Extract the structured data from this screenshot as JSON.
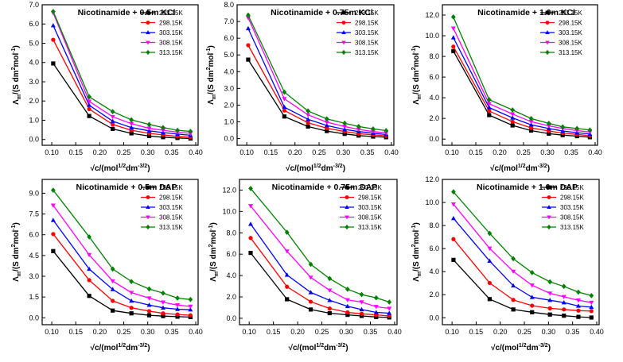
{
  "figure": {
    "xlabel": "√c/(mol",
    "xlabel_sup": "1/2",
    "xlabel_mid": "dm",
    "xlabel_sup2": "-3/2",
    "xlabel_end": ")",
    "ylabel": "Λ",
    "ylabel_sub": "m",
    "ylabel_mid": "/(S dm",
    "ylabel_sup": "2",
    "ylabel_mid2": "mol",
    "ylabel_sup2": "-1",
    "ylabel_end": ")"
  },
  "colors": {
    "293.15K": "#000000",
    "298.15K": "#ff0000",
    "303.15K": "#0000ff",
    "308.15K": "#ff00ff",
    "313.15K": "#008000"
  },
  "chart_data": [
    {
      "type": "line",
      "title": "Nicotinamide + 0.5m KCl",
      "x": [
        0.103,
        0.178,
        0.227,
        0.266,
        0.303,
        0.332,
        0.362,
        0.389
      ],
      "ylim": [
        -0.3,
        7.0
      ],
      "yticks": [
        "0.0",
        "1.0",
        "2.0",
        "3.0",
        "4.0",
        "5.0",
        "6.0",
        "7.0"
      ],
      "ytick_values": [
        0,
        1,
        2,
        3,
        4,
        5,
        6,
        7
      ],
      "series": [
        {
          "name": "293.15K",
          "marker": "square",
          "values": [
            3.95,
            1.22,
            0.55,
            0.32,
            0.18,
            0.12,
            0.08,
            0.05
          ]
        },
        {
          "name": "298.15K",
          "marker": "circle",
          "values": [
            5.18,
            1.58,
            0.78,
            0.48,
            0.32,
            0.24,
            0.16,
            0.12
          ]
        },
        {
          "name": "303.15K",
          "marker": "triangle-up",
          "values": [
            5.92,
            1.78,
            0.95,
            0.62,
            0.45,
            0.36,
            0.28,
            0.22
          ]
        },
        {
          "name": "308.15K",
          "marker": "triangle-down",
          "values": [
            6.58,
            1.98,
            1.18,
            0.82,
            0.58,
            0.48,
            0.38,
            0.32
          ]
        },
        {
          "name": "313.15K",
          "marker": "diamond",
          "values": [
            6.65,
            2.22,
            1.45,
            1.02,
            0.78,
            0.62,
            0.48,
            0.42
          ]
        }
      ]
    },
    {
      "type": "line",
      "title": "Nicotinamide + 0.75m KCl",
      "x": [
        0.103,
        0.178,
        0.227,
        0.266,
        0.303,
        0.332,
        0.362,
        0.389
      ],
      "ylim": [
        -0.4,
        8.0
      ],
      "yticks": [
        "0.0",
        "1.0",
        "2.0",
        "3.0",
        "4.0",
        "5.0",
        "6.0",
        "7.0",
        "8.0"
      ],
      "ytick_values": [
        0,
        1,
        2,
        3,
        4,
        5,
        6,
        7,
        8
      ],
      "series": [
        {
          "name": "293.15K",
          "marker": "square",
          "values": [
            4.72,
            1.32,
            0.72,
            0.45,
            0.28,
            0.18,
            0.12,
            0.08
          ]
        },
        {
          "name": "298.15K",
          "marker": "circle",
          "values": [
            5.58,
            1.68,
            0.95,
            0.62,
            0.42,
            0.3,
            0.22,
            0.16
          ]
        },
        {
          "name": "303.15K",
          "marker": "triangle-up",
          "values": [
            6.58,
            1.88,
            1.15,
            0.78,
            0.55,
            0.42,
            0.32,
            0.24
          ]
        },
        {
          "name": "308.15K",
          "marker": "triangle-down",
          "values": [
            7.22,
            2.38,
            1.42,
            0.98,
            0.72,
            0.55,
            0.42,
            0.34
          ]
        },
        {
          "name": "313.15K",
          "marker": "diamond",
          "values": [
            7.38,
            2.78,
            1.65,
            1.18,
            0.92,
            0.72,
            0.58,
            0.48
          ]
        }
      ]
    },
    {
      "type": "line",
      "title": "Nicotinamide + 1.0m KCl",
      "x": [
        0.103,
        0.178,
        0.227,
        0.266,
        0.303,
        0.332,
        0.362,
        0.389
      ],
      "ylim": [
        -0.6,
        13.0
      ],
      "yticks": [
        "0.0",
        "2.0",
        "4.0",
        "6.0",
        "8.0",
        "10.0",
        "12.0"
      ],
      "ytick_values": [
        0,
        2,
        4,
        6,
        8,
        10,
        12
      ],
      "series": [
        {
          "name": "293.15K",
          "marker": "square",
          "values": [
            8.52,
            2.32,
            1.32,
            0.82,
            0.52,
            0.38,
            0.28,
            0.18
          ]
        },
        {
          "name": "298.15K",
          "marker": "circle",
          "values": [
            8.95,
            2.72,
            1.68,
            1.08,
            0.78,
            0.58,
            0.45,
            0.32
          ]
        },
        {
          "name": "303.15K",
          "marker": "triangle-up",
          "values": [
            9.82,
            3.05,
            2.05,
            1.38,
            1.02,
            0.78,
            0.62,
            0.48
          ]
        },
        {
          "name": "308.15K",
          "marker": "triangle-down",
          "values": [
            10.72,
            3.42,
            2.42,
            1.68,
            1.28,
            1.02,
            0.82,
            0.68
          ]
        },
        {
          "name": "313.15K",
          "marker": "diamond",
          "values": [
            11.82,
            3.82,
            2.82,
            1.98,
            1.52,
            1.18,
            1.02,
            0.88
          ]
        }
      ]
    },
    {
      "type": "line",
      "title": "Nicotinamide + 0.5m DAP",
      "x": [
        0.103,
        0.178,
        0.227,
        0.266,
        0.303,
        0.332,
        0.362,
        0.389
      ],
      "ylim": [
        -0.5,
        10.0
      ],
      "yticks": [
        "0.0",
        "1.5",
        "3.0",
        "4.5",
        "6.0",
        "7.5",
        "9.0"
      ],
      "ytick_values": [
        0,
        1.5,
        3,
        4.5,
        6,
        7.5,
        9
      ],
      "series": [
        {
          "name": "293.15K",
          "marker": "square",
          "values": [
            4.82,
            1.58,
            0.52,
            0.32,
            0.18,
            0.12,
            0.08,
            0.05
          ]
        },
        {
          "name": "298.15K",
          "marker": "circle",
          "values": [
            6.05,
            2.72,
            1.22,
            0.72,
            0.48,
            0.32,
            0.24,
            0.18
          ]
        },
        {
          "name": "303.15K",
          "marker": "triangle-up",
          "values": [
            7.05,
            3.52,
            2.05,
            1.22,
            0.92,
            0.72,
            0.62,
            0.58
          ]
        },
        {
          "name": "308.15K",
          "marker": "triangle-down",
          "values": [
            8.12,
            4.55,
            2.65,
            1.82,
            1.42,
            1.12,
            0.92,
            0.82
          ]
        },
        {
          "name": "313.15K",
          "marker": "diamond",
          "values": [
            9.22,
            5.85,
            3.52,
            2.62,
            2.08,
            1.78,
            1.42,
            1.32
          ]
        }
      ]
    },
    {
      "type": "line",
      "title": "Nicotinamide + 0.75m DAP",
      "x": [
        0.103,
        0.178,
        0.227,
        0.266,
        0.303,
        0.332,
        0.362,
        0.389
      ],
      "ylim": [
        -0.6,
        13.0
      ],
      "yticks": [
        "0.0",
        "2.0",
        "4.0",
        "6.0",
        "8.0",
        "10.0",
        "12.0"
      ],
      "ytick_values": [
        0,
        2,
        4,
        6,
        8,
        10,
        12
      ],
      "series": [
        {
          "name": "293.15K",
          "marker": "square",
          "values": [
            6.12,
            1.78,
            0.82,
            0.48,
            0.32,
            0.22,
            0.12,
            0.08
          ]
        },
        {
          "name": "298.15K",
          "marker": "circle",
          "values": [
            7.52,
            2.95,
            1.55,
            0.92,
            0.55,
            0.42,
            0.32,
            0.22
          ]
        },
        {
          "name": "303.15K",
          "marker": "triangle-up",
          "values": [
            8.82,
            4.05,
            2.42,
            1.68,
            1.12,
            0.82,
            0.55,
            0.48
          ]
        },
        {
          "name": "308.15K",
          "marker": "triangle-down",
          "values": [
            10.52,
            6.28,
            3.82,
            2.62,
            1.72,
            1.52,
            1.08,
            0.92
          ]
        },
        {
          "name": "313.15K",
          "marker": "diamond",
          "values": [
            12.15,
            8.05,
            5.05,
            3.72,
            2.72,
            2.22,
            1.92,
            1.52
          ]
        }
      ]
    },
    {
      "type": "line",
      "title": "Nicotinamide + 1.0m DAP",
      "x": [
        0.103,
        0.178,
        0.227,
        0.266,
        0.303,
        0.332,
        0.362,
        0.389
      ],
      "ylim": [
        -0.6,
        12.0
      ],
      "yticks": [
        "0.0",
        "2.0",
        "4.0",
        "6.0",
        "8.0",
        "10.0",
        "12.0"
      ],
      "ytick_values": [
        0,
        2,
        4,
        6,
        8,
        10,
        12
      ],
      "series": [
        {
          "name": "293.15K",
          "marker": "square",
          "values": [
            5.02,
            1.62,
            0.72,
            0.48,
            0.28,
            0.18,
            0.08,
            0.02
          ]
        },
        {
          "name": "298.15K",
          "marker": "circle",
          "values": [
            6.82,
            3.02,
            1.55,
            1.05,
            0.82,
            0.72,
            0.62,
            0.58
          ]
        },
        {
          "name": "303.15K",
          "marker": "triangle-up",
          "values": [
            8.62,
            4.92,
            2.78,
            1.78,
            1.52,
            1.32,
            1.02,
            0.92
          ]
        },
        {
          "name": "308.15K",
          "marker": "triangle-down",
          "values": [
            9.85,
            6.02,
            4.02,
            2.82,
            2.12,
            1.82,
            1.52,
            1.32
          ]
        },
        {
          "name": "313.15K",
          "marker": "diamond",
          "values": [
            10.92,
            7.32,
            5.12,
            3.92,
            3.12,
            2.72,
            2.22,
            1.92
          ]
        }
      ]
    }
  ]
}
